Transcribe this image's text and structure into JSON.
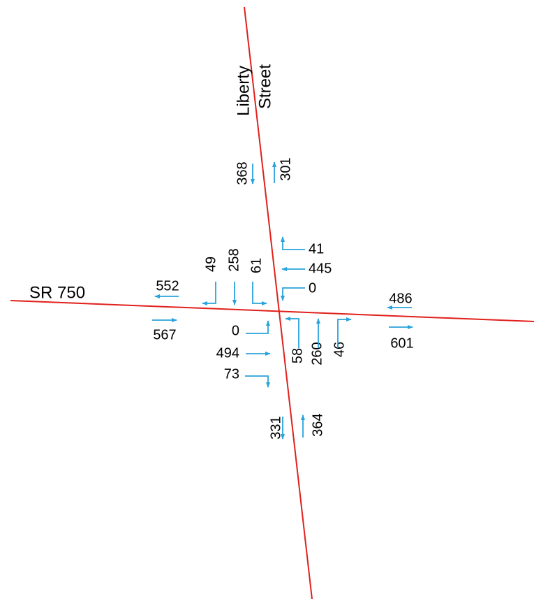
{
  "streets": {
    "north_south": [
      "Liberty",
      "Street"
    ],
    "east_west": "SR 750"
  },
  "link_volumes": {
    "north_leg": {
      "southbound": 368,
      "northbound": 301
    },
    "west_leg": {
      "westbound": 552,
      "eastbound": 567
    },
    "east_leg": {
      "westbound": 486,
      "eastbound": 601
    },
    "south_leg": {
      "southbound": 331,
      "northbound": 364
    }
  },
  "turning_movements": {
    "southbound": {
      "right": 49,
      "through": 258,
      "left": 61
    },
    "westbound": {
      "right": 41,
      "through": 445,
      "left": 0
    },
    "eastbound": {
      "left": 0,
      "through": 494,
      "right": 73
    },
    "northbound": {
      "left": 58,
      "through": 260,
      "right": 46
    }
  }
}
